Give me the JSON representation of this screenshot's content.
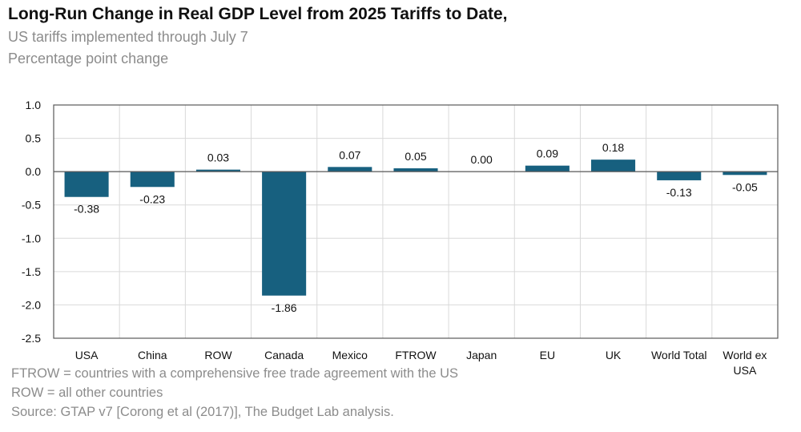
{
  "header": {
    "title": "Long-Run Change in Real GDP Level from 2025 Tariffs to Date,",
    "subtitle_line1": "US tariffs implemented through July 7",
    "subtitle_line2": "Percentage point change"
  },
  "footnotes": {
    "line1": "FTROW = countries with a comprehensive free trade agreement with the US",
    "line2": "ROW = all other countries",
    "line3": "Source: GTAP v7 [Corong et al (2017)], The Budget Lab analysis."
  },
  "colors": {
    "bar": "#17607f",
    "grid": "#d9d9d9",
    "axis": "#595959",
    "text": "#111111"
  },
  "chart_data": {
    "type": "bar",
    "title": "Long-Run Change in Real GDP Level from 2025 Tariffs to Date,",
    "categories": [
      "USA",
      "China",
      "ROW",
      "Canada",
      "Mexico",
      "FTROW",
      "Japan",
      "EU",
      "UK",
      "World Total",
      "World ex USA"
    ],
    "category_lines": [
      [
        "USA"
      ],
      [
        "China"
      ],
      [
        "ROW"
      ],
      [
        "Canada"
      ],
      [
        "Mexico"
      ],
      [
        "FTROW"
      ],
      [
        "Japan"
      ],
      [
        "EU"
      ],
      [
        "UK"
      ],
      [
        "World Total"
      ],
      [
        "World ex",
        "USA"
      ]
    ],
    "values": [
      -0.38,
      -0.23,
      0.03,
      -1.86,
      0.07,
      0.05,
      0.0,
      0.09,
      0.18,
      -0.13,
      -0.05
    ],
    "value_labels": [
      "-0.38",
      "-0.23",
      "0.03",
      "-1.86",
      "0.07",
      "0.05",
      "0.00",
      "0.09",
      "0.18",
      "-0.13",
      "-0.05"
    ],
    "ylim": [
      -2.5,
      1.0
    ],
    "yticks": [
      1.0,
      0.5,
      0.0,
      -0.5,
      -1.0,
      -1.5,
      -2.0,
      -2.5
    ],
    "ytick_labels": [
      "1.0",
      "0.5",
      "0.0",
      "-0.5",
      "-1.0",
      "-1.5",
      "-2.0",
      "-2.5"
    ],
    "xlabel": "",
    "ylabel": "",
    "grid": true,
    "legend": "none"
  }
}
